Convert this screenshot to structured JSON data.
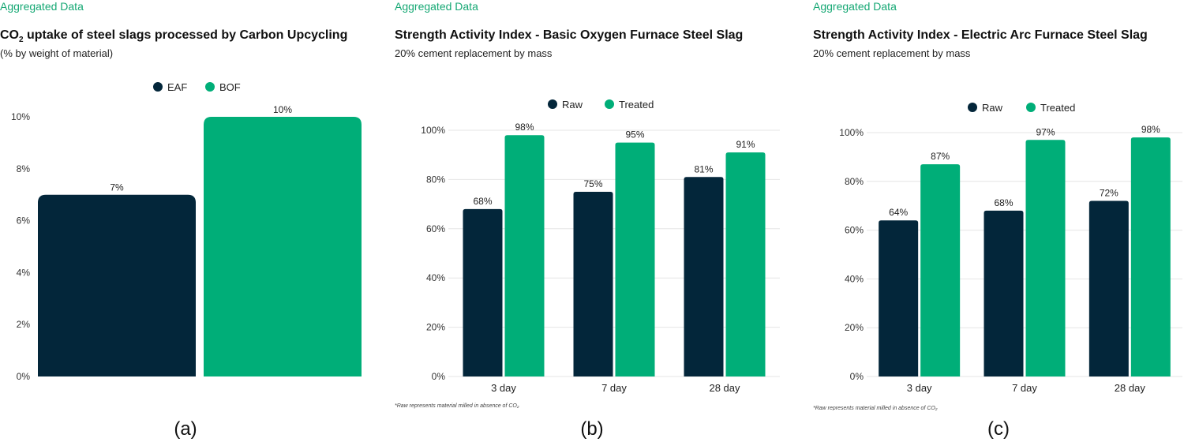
{
  "colors": {
    "dark": "#03263a",
    "green": "#00ae78",
    "kicker": "#16a874",
    "grid": "#e6e6e6"
  },
  "panels": [
    {
      "kicker": "Aggregated Data",
      "title_main": "CO",
      "title_sub": "2",
      "title_rest": " uptake of steel slags processed by Carbon Upcycling",
      "subtitle": "(% by weight of material)",
      "caption": "(a)"
    },
    {
      "kicker": "Aggregated Data",
      "title": "Strength Activity Index - Basic Oxygen Furnace Steel Slag",
      "subtitle": "20% cement replacement by mass",
      "footnote": "*Raw represents material milled in absence of CO₂",
      "caption": "(b)"
    },
    {
      "kicker": "Aggregated Data",
      "title": "Strength Activity Index - Electric Arc Furnace Steel Slag",
      "subtitle": "20% cement replacement by mass",
      "footnote": "*Raw represents material milled in absence of CO₂",
      "caption": "(c)"
    }
  ],
  "chart_data": [
    {
      "type": "bar",
      "title": "CO₂ uptake of steel slags processed by Carbon Upcycling",
      "subtitle": "(% by weight of material)",
      "categories": [
        "EAF",
        "BOF"
      ],
      "values": [
        7,
        10
      ],
      "value_labels": [
        "7%",
        "10%"
      ],
      "ylim": [
        0,
        10
      ],
      "yticks": [
        0,
        2,
        4,
        6,
        8,
        10
      ],
      "ytick_labels": [
        "0%",
        "2%",
        "4%",
        "6%",
        "8%",
        "10%"
      ],
      "legend": [
        "EAF",
        "BOF"
      ],
      "legend_position": "top-center",
      "grid": false
    },
    {
      "type": "bar",
      "title": "Strength Activity Index - Basic Oxygen Furnace Steel Slag",
      "subtitle": "20% cement replacement by mass",
      "categories": [
        "3 day",
        "7 day",
        "28 day"
      ],
      "series": [
        {
          "name": "Raw",
          "values": [
            68,
            75,
            81
          ],
          "labels": [
            "68%",
            "75%",
            "81%"
          ]
        },
        {
          "name": "Treated",
          "values": [
            98,
            95,
            91
          ],
          "labels": [
            "98%",
            "95%",
            "91%"
          ]
        }
      ],
      "ylim": [
        0,
        100
      ],
      "yticks": [
        0,
        20,
        40,
        60,
        80,
        100
      ],
      "ytick_labels": [
        "0%",
        "20%",
        "40%",
        "60%",
        "80%",
        "100%"
      ],
      "legend_position": "top-center",
      "grid": true
    },
    {
      "type": "bar",
      "title": "Strength Activity Index - Electric Arc Furnace Steel Slag",
      "subtitle": "20% cement replacement by mass",
      "categories": [
        "3 day",
        "7 day",
        "28 day"
      ],
      "series": [
        {
          "name": "Raw",
          "values": [
            64,
            68,
            72
          ],
          "labels": [
            "64%",
            "68%",
            "72%"
          ]
        },
        {
          "name": "Treated",
          "values": [
            87,
            97,
            98
          ],
          "labels": [
            "87%",
            "97%",
            "98%"
          ]
        }
      ],
      "ylim": [
        0,
        100
      ],
      "yticks": [
        0,
        20,
        40,
        60,
        80,
        100
      ],
      "ytick_labels": [
        "0%",
        "20%",
        "40%",
        "60%",
        "80%",
        "100%"
      ],
      "legend_position": "top-center",
      "grid": true
    }
  ]
}
